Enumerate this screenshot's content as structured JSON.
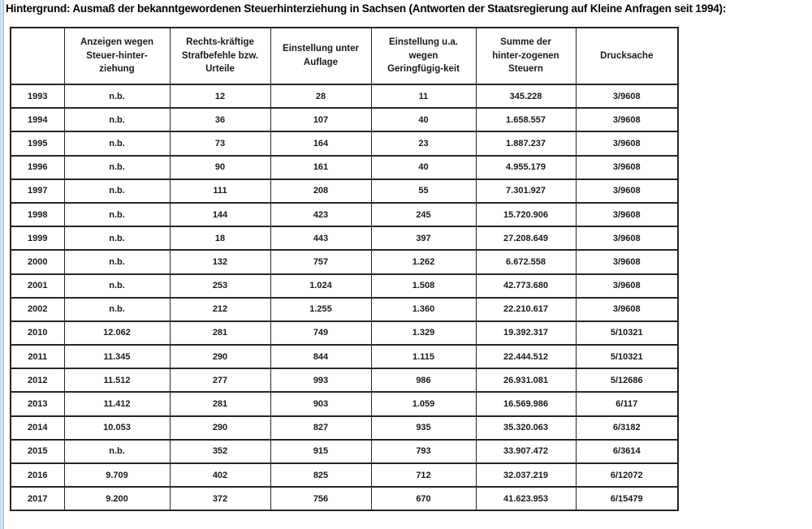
{
  "title": "Hintergrund: Ausmaß der bekanntgewordenen Steuerhinterziehung in Sachsen (Antworten der Staatsregierung auf Kleine Anfragen seit 1994):",
  "colors": {
    "border": "#262626",
    "text": "#1a1a1a",
    "edge_stripe": "#a9c6e4",
    "background": "#ffffff"
  },
  "chart_data": {
    "type": "table",
    "title": "Ausmaß der bekanntgewordenen Steuerhinterziehung in Sachsen",
    "headers": [
      "",
      "Anzeigen wegen\nSteuer-hinter-\nziehung",
      "Rechts-kräftige\nStrafbefehle bzw.\nUrteile",
      "Einstellung unter\nAuflage",
      "Einstellung u.a.\nwegen\nGeringfügig-keit",
      "Summe der\nhinter-zogenen\nSteuern",
      "Drucksache"
    ],
    "rows": [
      [
        "1993",
        "n.b.",
        "12",
        "28",
        "11",
        "345.228",
        "3/9608"
      ],
      [
        "1994",
        "n.b.",
        "36",
        "107",
        "40",
        "1.658.557",
        "3/9608"
      ],
      [
        "1995",
        "n.b.",
        "73",
        "164",
        "23",
        "1.887.237",
        "3/9608"
      ],
      [
        "1996",
        "n.b.",
        "90",
        "161",
        "40",
        "4.955.179",
        "3/9608"
      ],
      [
        "1997",
        "n.b.",
        "111",
        "208",
        "55",
        "7.301.927",
        "3/9608"
      ],
      [
        "1998",
        "n.b.",
        "144",
        "423",
        "245",
        "15.720.906",
        "3/9608"
      ],
      [
        "1999",
        "n.b.",
        "18",
        "443",
        "397",
        "27.208.649",
        "3/9608"
      ],
      [
        "2000",
        "n.b.",
        "132",
        "757",
        "1.262",
        "6.672.558",
        "3/9608"
      ],
      [
        "2001",
        "n.b.",
        "253",
        "1.024",
        "1.508",
        "42.773.680",
        "3/9608"
      ],
      [
        "2002",
        "n.b.",
        "212",
        "1.255",
        "1.360",
        "22.210.617",
        "3/9608"
      ],
      [
        "2010",
        "12.062",
        "281",
        "749",
        "1.329",
        "19.392.317",
        "5/10321"
      ],
      [
        "2011",
        "11.345",
        "290",
        "844",
        "1.115",
        "22.444.512",
        "5/10321"
      ],
      [
        "2012",
        "11.512",
        "277",
        "993",
        "986",
        "26.931.081",
        "5/12686"
      ],
      [
        "2013",
        "11.412",
        "281",
        "903",
        "1.059",
        "16.569.986",
        "6/117"
      ],
      [
        "2014",
        "10.053",
        "290",
        "827",
        "935",
        "35.320.063",
        "6/3182"
      ],
      [
        "2015",
        "n.b.",
        "352",
        "915",
        "793",
        "33.907.472",
        "6/3614"
      ],
      [
        "2016",
        "9.709",
        "402",
        "825",
        "712",
        "32.037.219",
        "6/12072"
      ],
      [
        "2017",
        "9.200",
        "372",
        "756",
        "670",
        "41.623.953",
        "6/15479"
      ]
    ]
  }
}
